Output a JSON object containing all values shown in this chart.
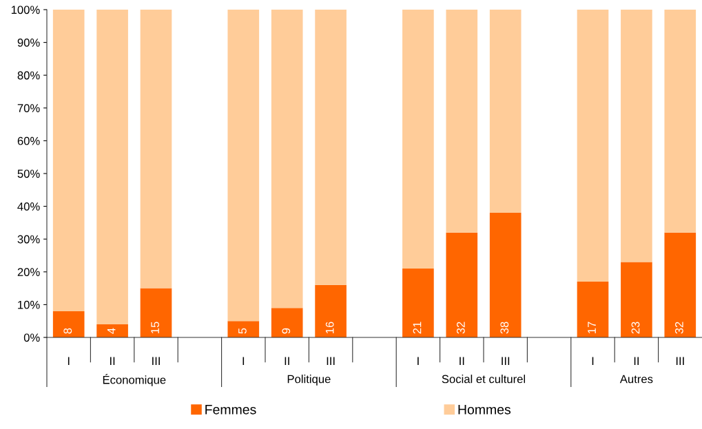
{
  "chart_data": {
    "type": "bar",
    "stacked": true,
    "categories": [
      "I",
      "II",
      "III",
      null,
      "I",
      "II",
      "III",
      null,
      "I",
      "II",
      "III",
      null,
      "I",
      "II",
      "III"
    ],
    "series": [
      {
        "name": "Femmes",
        "color": "#ff6600",
        "values": [
          8,
          4,
          15,
          null,
          5,
          9,
          16,
          null,
          21,
          32,
          38,
          null,
          17,
          23,
          32
        ],
        "value_labels": [
          "8",
          "4",
          "15",
          null,
          "5",
          "9",
          "16",
          null,
          "21",
          "32",
          "38",
          null,
          "17",
          "23",
          "32"
        ]
      },
      {
        "name": "Hommes",
        "color": "#ffcc99",
        "values": [
          92,
          96,
          85,
          null,
          95,
          91,
          84,
          null,
          79,
          68,
          62,
          null,
          83,
          77,
          68
        ]
      }
    ],
    "annotations": [
      "Économique",
      "Politique",
      "Social et culturel",
      "Autres"
    ],
    "ylim": [
      0,
      100
    ],
    "yticks": [
      {
        "value": 0,
        "label": "0%"
      },
      {
        "value": 10,
        "label": "10%"
      },
      {
        "value": 20,
        "label": "20%"
      },
      {
        "value": 30,
        "label": "30%"
      },
      {
        "value": 40,
        "label": "40%"
      },
      {
        "value": 50,
        "label": "50%"
      },
      {
        "value": 60,
        "label": "60%"
      },
      {
        "value": 70,
        "label": "70%"
      },
      {
        "value": 80,
        "label": "80%"
      },
      {
        "value": 90,
        "label": "90%"
      },
      {
        "value": 100,
        "label": "100%"
      }
    ],
    "grid": false,
    "legend": "bottom"
  }
}
